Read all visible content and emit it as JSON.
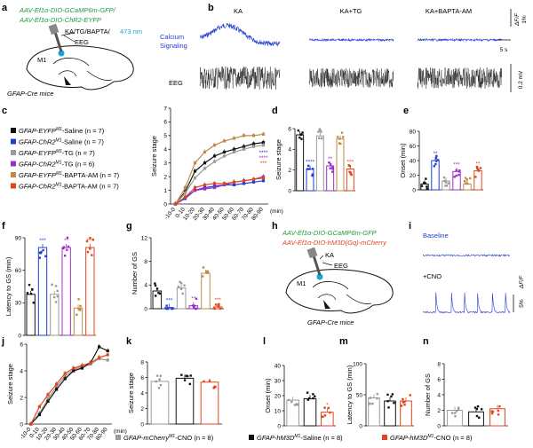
{
  "colors": {
    "black": "#111111",
    "blue": "#1f3fd1",
    "gray": "#9a9a9a",
    "purple": "#9b30c8",
    "tan": "#c08a46",
    "red": "#e0441e",
    "darkred": "#c0301a",
    "cyan": "#12a6d8",
    "green": "#1f9a3a"
  },
  "panel_letters": [
    "a",
    "b",
    "c",
    "d",
    "e",
    "f",
    "g",
    "h",
    "i",
    "j",
    "k",
    "l",
    "m",
    "n"
  ],
  "a": {
    "virus1": "AAV-Ef1α-DIO-GCaMP6m-GFP/",
    "virus2": "AAV-Ef1α-DIO-ChR2-EYFP",
    "drugs": "KA/TG/BAPTA/",
    "laser": "473 nm",
    "eeg": "EEG",
    "region": "M1",
    "mice": "GFAP-Cre mice"
  },
  "b": {
    "col_titles": [
      "KA",
      "KA+TG",
      "KA+BAPTA-AM"
    ],
    "row1": "Calcium",
    "row2": "Signaling",
    "row_eeg": "EEG",
    "scale_ca": "1%",
    "scale_ca_unit": "ΔF/F",
    "scale_t": "5 s",
    "scale_v": "0.2 mV"
  },
  "legend_c": [
    {
      "text": "GFAP-EYFP",
      "sup": "M1",
      "rest": "-Saline (n = 7)",
      "color": "#111111"
    },
    {
      "text": "GFAP-ChR2",
      "sup": "M1",
      "rest": "-Saline (n = 7)",
      "color": "#1f3fd1"
    },
    {
      "text": "GFAP-EYFP",
      "sup": "M1",
      "rest": "-TG (n = 7)",
      "color": "#9a9a9a"
    },
    {
      "text": "GFAP-ChR2",
      "sup": "M1",
      "rest": "-TG (n = 6)",
      "color": "#9b30c8"
    },
    {
      "text": "GFAP-EYFP",
      "sup": "M1",
      "rest": "-BAPTA-AM (n = 7)",
      "color": "#c08a46"
    },
    {
      "text": "GFAP-ChR2",
      "sup": "M1",
      "rest": "-BAPTA-AM (n = 7)",
      "color": "#e0441e"
    }
  ],
  "chart_data": [
    {
      "panel": "c",
      "type": "line",
      "ylabel": "Seizure stage",
      "xlabel": "(min)",
      "ylim": [
        0,
        7
      ],
      "yticks": [
        "0",
        "1",
        "2",
        "3",
        "4",
        "5",
        "6",
        "7"
      ],
      "x": [
        "-10-0",
        "0-10",
        "10-20",
        "20-30",
        "30-40",
        "40-50",
        "50-60",
        "60-70",
        "70-80",
        "80-90"
      ],
      "sig": [
        "****",
        "****",
        "***"
      ],
      "series": [
        {
          "name": "GFAP-EYFP M1-Saline",
          "color": "#111111",
          "values": [
            0,
            0.9,
            2.4,
            3.0,
            3.5,
            3.8,
            4.0,
            4.2,
            4.4,
            4.5
          ]
        },
        {
          "name": "GFAP-ChR2 M1-Saline",
          "color": "#1f3fd1",
          "values": [
            0,
            0.4,
            1.0,
            1.2,
            1.3,
            1.4,
            1.4,
            1.5,
            1.6,
            1.7
          ]
        },
        {
          "name": "GFAP-EYFP M1-TG",
          "color": "#9a9a9a",
          "values": [
            0,
            0.8,
            1.9,
            2.6,
            3.1,
            3.5,
            3.8,
            4.0,
            4.2,
            4.3
          ]
        },
        {
          "name": "GFAP-ChR2 M1-TG",
          "color": "#9b30c8",
          "values": [
            0,
            0.5,
            1.0,
            1.1,
            1.2,
            1.4,
            1.6,
            1.7,
            1.8,
            2.0
          ]
        },
        {
          "name": "GFAP-EYFP M1-BAPTA-AM",
          "color": "#c08a46",
          "values": [
            0,
            1.2,
            3.0,
            3.8,
            4.3,
            4.6,
            4.8,
            5.0,
            5.0,
            5.1
          ]
        },
        {
          "name": "GFAP-ChR2 M1-BAPTA-AM",
          "color": "#e0441e",
          "values": [
            0,
            0.5,
            1.2,
            1.4,
            1.5,
            1.5,
            1.6,
            1.7,
            1.8,
            1.9
          ]
        }
      ]
    },
    {
      "panel": "d",
      "type": "bar",
      "ylabel": "Seizure stage",
      "ylim": [
        0,
        6
      ],
      "yticks": [
        "0",
        "2",
        "4",
        "6"
      ],
      "values": [
        5.4,
        2.1,
        5.3,
        2.4,
        5.0,
        2.1
      ],
      "colors": [
        "#111111",
        "#1f3fd1",
        "#9a9a9a",
        "#9b30c8",
        "#c08a46",
        "#e0441e"
      ],
      "sig": [
        "",
        "****",
        "",
        "**",
        "",
        "***"
      ]
    },
    {
      "panel": "e",
      "type": "bar",
      "ylabel": "Onset (min)",
      "ylim": [
        0,
        80
      ],
      "yticks": [
        "0",
        "20",
        "40",
        "60",
        "80"
      ],
      "values": [
        8,
        40,
        12,
        25,
        8,
        26
      ],
      "colors": [
        "#111111",
        "#1f3fd1",
        "#9a9a9a",
        "#9b30c8",
        "#c08a46",
        "#e0441e"
      ],
      "sig": [
        "",
        "**",
        "",
        "***",
        "",
        "**"
      ]
    },
    {
      "panel": "f",
      "type": "bar",
      "ylabel": "Latency to GS (min)",
      "ylim": [
        0,
        100
      ],
      "yticks": [
        "0",
        "30",
        "60",
        "90"
      ],
      "values": [
        42,
        90,
        42,
        90,
        28,
        90
      ],
      "colors": [
        "#111111",
        "#1f3fd1",
        "#9a9a9a",
        "#9b30c8",
        "#c08a46",
        "#e0441e"
      ],
      "sig": [
        "",
        "***",
        "",
        "**",
        "",
        "***"
      ]
    },
    {
      "panel": "g",
      "type": "bar",
      "ylabel": "Number of GS",
      "ylim": [
        0,
        12
      ],
      "yticks": [
        "0",
        "4",
        "8",
        "12"
      ],
      "values": [
        3,
        0.2,
        3.5,
        0.5,
        6,
        0.3
      ],
      "colors": [
        "#111111",
        "#1f3fd1",
        "#9a9a9a",
        "#9b30c8",
        "#c08a46",
        "#e0441e"
      ],
      "sig": [
        "",
        "***",
        "",
        "**",
        "",
        "***"
      ]
    },
    {
      "panel": "j",
      "type": "line",
      "ylabel": "Seizure stage",
      "xlabel": "(min)",
      "ylim": [
        0,
        6
      ],
      "yticks": [
        "0",
        "2",
        "4",
        "6"
      ],
      "x": [
        "-10-0",
        "0-10",
        "10-20",
        "20-30",
        "30-40",
        "40-50",
        "50-60",
        "60-70",
        "70-80",
        "80-90"
      ],
      "series": [
        {
          "name": "GFAP-mCherry M1-CNO",
          "color": "#9a9a9a",
          "values": [
            0,
            0.8,
            1.9,
            2.8,
            3.6,
            4.1,
            4.3,
            4.5,
            4.9,
            4.8
          ]
        },
        {
          "name": "GFAP-hM3D M1-Saline",
          "color": "#111111",
          "values": [
            0,
            0.7,
            1.7,
            2.6,
            3.4,
            4.0,
            4.2,
            4.6,
            5.8,
            5.5
          ]
        },
        {
          "name": "GFAP-hM3D M1-CNO",
          "color": "#e0441e",
          "values": [
            0,
            1.3,
            2.2,
            3.0,
            3.8,
            4.2,
            4.4,
            4.6,
            5.0,
            5.2
          ]
        }
      ]
    },
    {
      "panel": "k",
      "type": "bar",
      "ylabel": "Seizure stage",
      "ylim": [
        0,
        8
      ],
      "yticks": [
        "0",
        "2",
        "4",
        "6",
        "8"
      ],
      "values": [
        5.5,
        5.9,
        5.4
      ],
      "colors": [
        "#9a9a9a",
        "#111111",
        "#e0441e"
      ]
    },
    {
      "panel": "l",
      "type": "bar",
      "ylabel": "Onset (min)",
      "ylim": [
        0,
        40
      ],
      "yticks": [
        "0",
        "10",
        "20",
        "30",
        "40"
      ],
      "values": [
        17,
        18,
        9
      ],
      "colors": [
        "#9a9a9a",
        "#111111",
        "#e0441e"
      ],
      "sig": [
        "",
        "",
        "*"
      ]
    },
    {
      "panel": "m",
      "type": "bar",
      "ylabel": "Latency to GS (min)",
      "ylim": [
        0,
        100
      ],
      "yticks": [
        "0",
        "50",
        "100"
      ],
      "values": [
        45,
        40,
        40
      ],
      "colors": [
        "#9a9a9a",
        "#111111",
        "#e0441e"
      ]
    },
    {
      "panel": "n",
      "type": "bar",
      "ylabel": "Number of GS",
      "ylim": [
        0,
        8
      ],
      "yticks": [
        "0",
        "2",
        "4",
        "6",
        "8"
      ],
      "values": [
        2,
        1.8,
        2.2
      ],
      "colors": [
        "#9a9a9a",
        "#111111",
        "#e0441e"
      ]
    }
  ],
  "h": {
    "virus1": "AAV-Ef1α-DIO-GCaMP6m-GFP",
    "virus2": "AAV-Ef1α-DIO-hM3D(Gq)-mCherry",
    "drug": "KA",
    "eeg": "EEG",
    "region": "M1",
    "mice": "GFAP-Cre mice"
  },
  "i": {
    "baseline": "Baseline",
    "cno": "+CNO",
    "scale_ca": "5%",
    "scale_ca_unit": "ΔF/F"
  },
  "legend_bottom": [
    {
      "text": "GFAP-mCherry",
      "sup": "M1",
      "rest": "-CNO (n = 8)",
      "color": "#9a9a9a"
    },
    {
      "text": "GFAP-hM3D",
      "sup": "M1",
      "rest": "-Saline (n = 8)",
      "color": "#111111"
    },
    {
      "text": "GFAP-hM3D",
      "sup": "M1",
      "rest": "-CNO (n = 8)",
      "color": "#e0441e"
    }
  ]
}
